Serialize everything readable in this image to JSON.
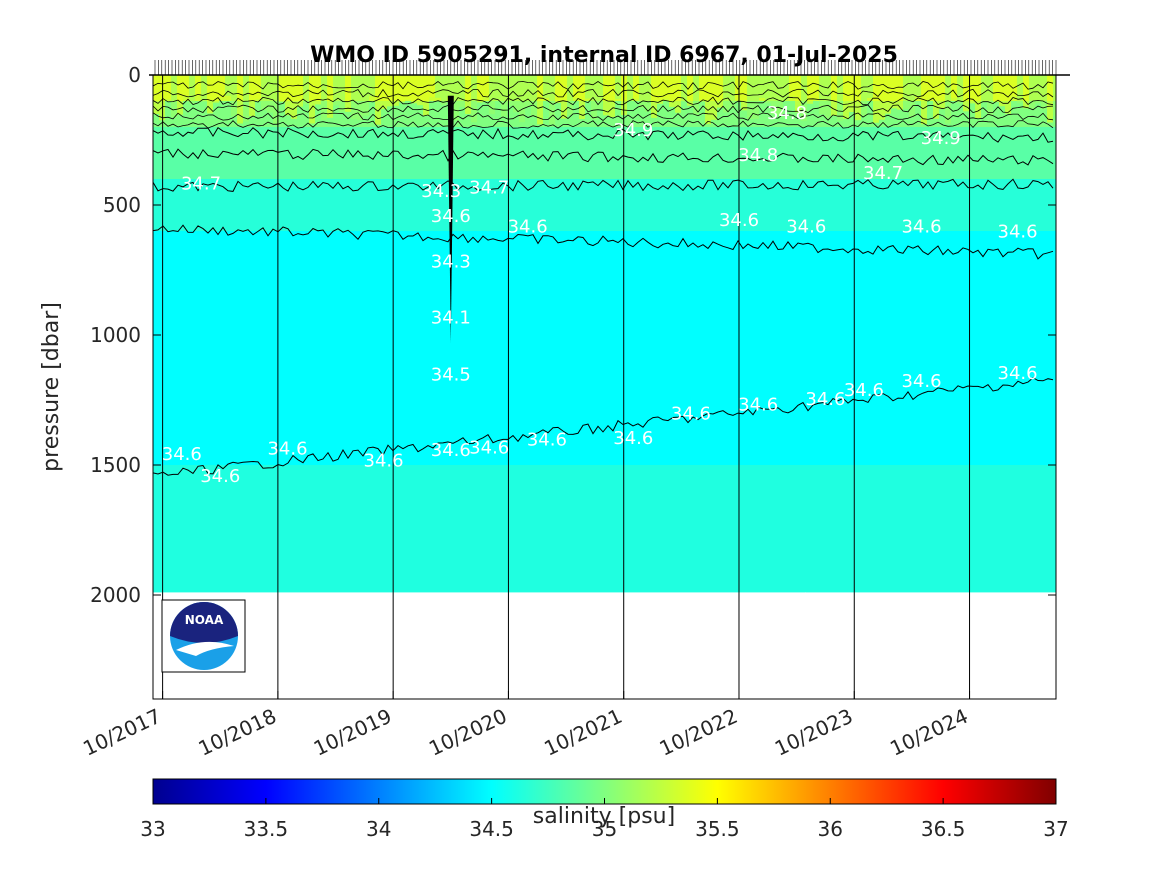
{
  "chart_data": {
    "type": "heatmap",
    "title": "WMO ID 5905291, internal ID 6967, 01-Jul-2025",
    "xlabel": "",
    "ylabel": "pressure [dbar]",
    "x_tick_labels": [
      "10/2017",
      "10/2018",
      "10/2019",
      "10/2020",
      "10/2021",
      "10/2022",
      "10/2023",
      "10/2024"
    ],
    "x_range": [
      "2017-09",
      "2025-07"
    ],
    "y_range": [
      0,
      2400
    ],
    "y_reversed": true,
    "y_ticks": [
      0,
      500,
      1000,
      1500,
      2000
    ],
    "y_tick_labels": [
      "0",
      "500",
      "1000",
      "1500",
      "2000"
    ],
    "colorbar": {
      "label": "salinity [psu]",
      "range": [
        33,
        37
      ],
      "ticks": [
        33,
        33.5,
        34,
        34.5,
        35,
        35.5,
        36,
        36.5,
        37
      ],
      "tick_labels": [
        "33",
        "33.5",
        "34",
        "34.5",
        "35",
        "35.5",
        "36",
        "36.5",
        "37"
      ],
      "colormap": "jet"
    },
    "profile_max_depth_dbar": 1990,
    "layers": [
      {
        "depth_range": [
          0,
          100
        ],
        "salinity": 35.3
      },
      {
        "depth_range": [
          100,
          200
        ],
        "salinity": 35.0
      },
      {
        "depth_range": [
          200,
          400
        ],
        "salinity": 34.85
      },
      {
        "depth_range": [
          400,
          600
        ],
        "salinity": 34.65
      },
      {
        "depth_range": [
          600,
          1500
        ],
        "salinity": 34.5
      },
      {
        "depth_range": [
          1500,
          1990
        ],
        "salinity": 34.62
      }
    ],
    "contour_labels": [
      {
        "text": "34.7",
        "x": "2018-02",
        "y": 440
      },
      {
        "text": "34.6",
        "x": "2020-12",
        "y": 605
      },
      {
        "text": "34.6",
        "x": "2022-10",
        "y": 580
      },
      {
        "text": "34.6",
        "x": "2023-05",
        "y": 605
      },
      {
        "text": "34.6",
        "x": "2024-05",
        "y": 605
      },
      {
        "text": "34.6",
        "x": "2025-03",
        "y": 625
      },
      {
        "text": "34.3",
        "x": "2020-03",
        "y": 470
      },
      {
        "text": "34.7",
        "x": "2020-08",
        "y": 455
      },
      {
        "text": "34.6",
        "x": "2020-04",
        "y": 565
      },
      {
        "text": "34.3",
        "x": "2020-04",
        "y": 740
      },
      {
        "text": "34.1",
        "x": "2020-04",
        "y": 955
      },
      {
        "text": "34.5",
        "x": "2020-04",
        "y": 1175
      },
      {
        "text": "34.9",
        "x": "2021-11",
        "y": 235
      },
      {
        "text": "34.8",
        "x": "2022-12",
        "y": 330
      },
      {
        "text": "34.8",
        "x": "2023-03",
        "y": 170
      },
      {
        "text": "34.9",
        "x": "2024-07",
        "y": 265
      },
      {
        "text": "34.7",
        "x": "2024-01",
        "y": 400
      },
      {
        "text": "34.6",
        "x": "2017-12",
        "y": 1480
      },
      {
        "text": "34.6",
        "x": "2018-04",
        "y": 1565
      },
      {
        "text": "34.6",
        "x": "2018-11",
        "y": 1460
      },
      {
        "text": "34.6",
        "x": "2019-09",
        "y": 1505
      },
      {
        "text": "34.6",
        "x": "2020-04",
        "y": 1465
      },
      {
        "text": "34.6",
        "x": "2020-08",
        "y": 1455
      },
      {
        "text": "34.6",
        "x": "2021-02",
        "y": 1425
      },
      {
        "text": "34.6",
        "x": "2021-11",
        "y": 1420
      },
      {
        "text": "34.6",
        "x": "2022-05",
        "y": 1325
      },
      {
        "text": "34.6",
        "x": "2022-12",
        "y": 1290
      },
      {
        "text": "34.6",
        "x": "2023-07",
        "y": 1270
      },
      {
        "text": "34.6",
        "x": "2023-11",
        "y": 1235
      },
      {
        "text": "34.6",
        "x": "2024-05",
        "y": 1200
      },
      {
        "text": "34.6",
        "x": "2025-03",
        "y": 1170
      }
    ],
    "contours": [
      {
        "level": 34.7,
        "depth_start": 430,
        "depth_end": 420
      },
      {
        "level": 34.6,
        "depth_start": 590,
        "depth_end": 690
      },
      {
        "level": 34.6,
        "depth_start": 1540,
        "depth_end": 1170
      },
      {
        "level": 34.8,
        "depth_start": 300,
        "depth_end": 330
      },
      {
        "level": 34.9,
        "depth_start": 220,
        "depth_end": 240
      }
    ],
    "anomaly": {
      "x": "2020-04",
      "depth_range": [
        80,
        1030
      ]
    }
  },
  "colors": {
    "surface": "#e9f71f",
    "subsurface": "#9df27c",
    "thermocline": "#5ff1b2",
    "intermediate_upper": "#30f6d9",
    "intermediate": "#00ffff",
    "deep": "#2ef7dc"
  },
  "logo": {
    "text": "NOAA"
  }
}
